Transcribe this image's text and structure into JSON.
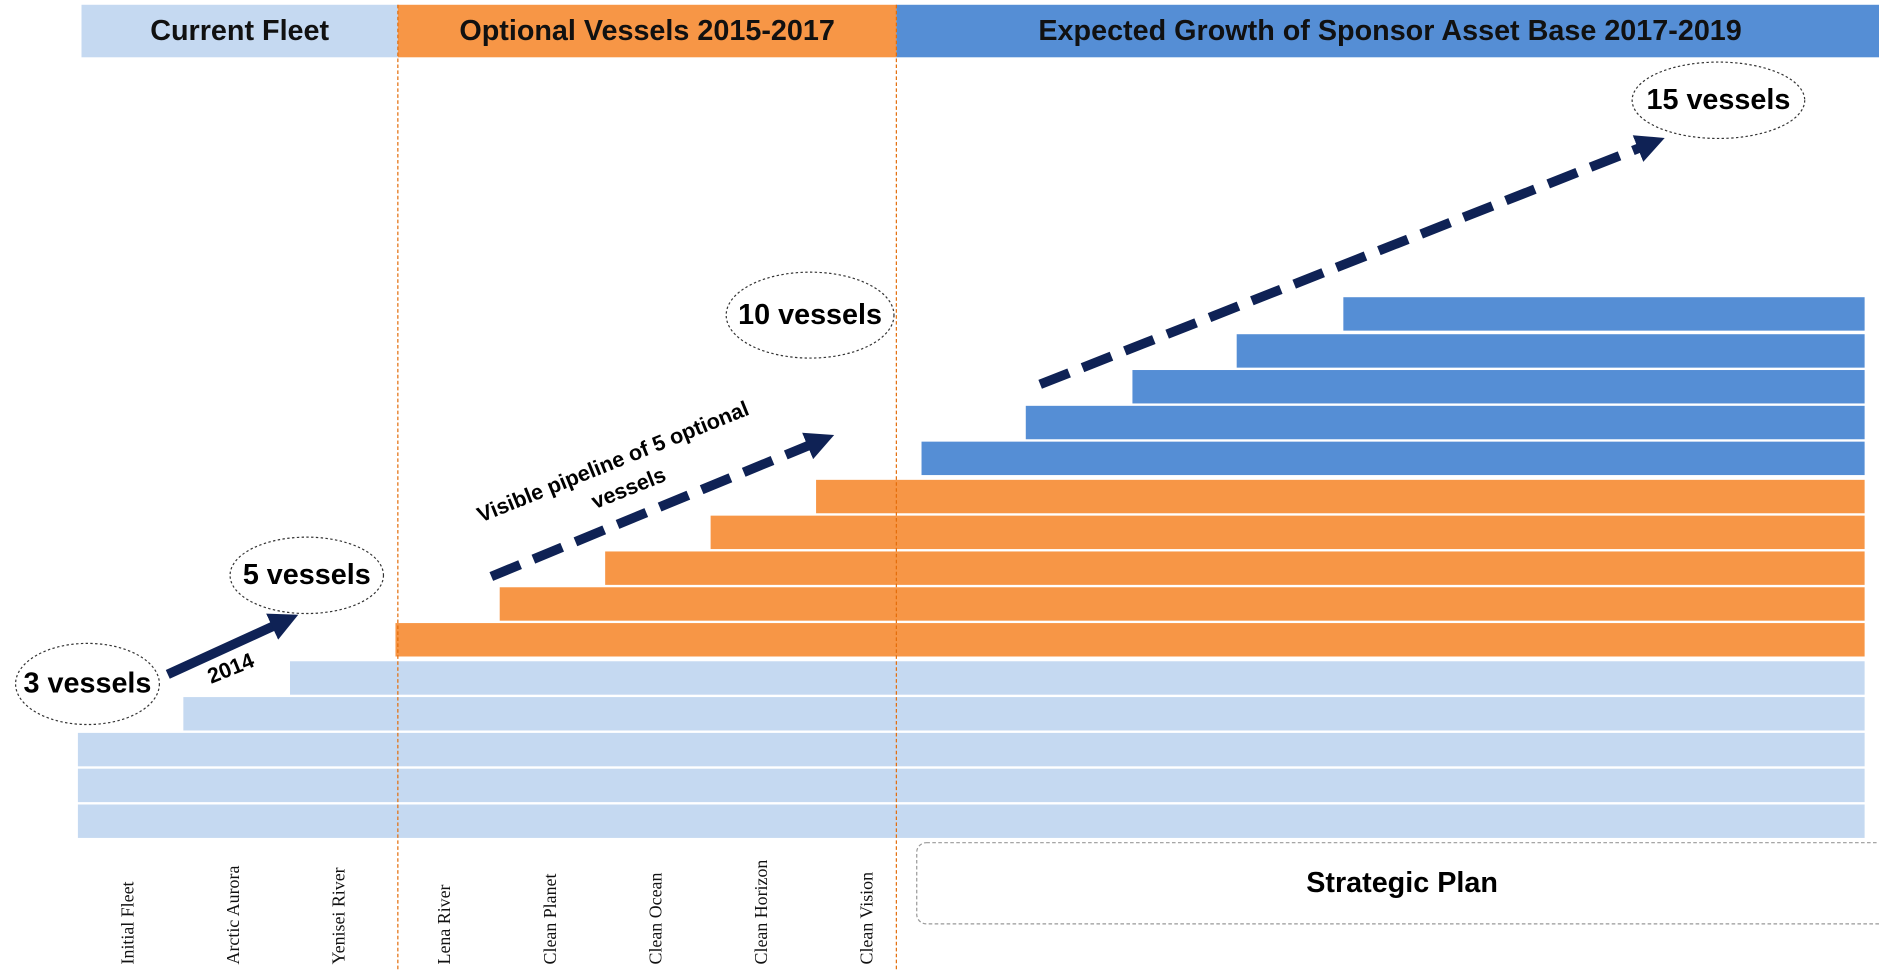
{
  "sections": [
    "Current Fleet",
    "Optional Vessels 2015-2017",
    "Expected Growth of Sponsor Asset Base 2017-2019"
  ],
  "milestones": [
    "3 vessels",
    "5 vessels",
    "10 vessels",
    "15 vessels"
  ],
  "arrow_labels": {
    "first": "2014",
    "pipeline": [
      "Visible pipeline of 5 optional",
      "vessels"
    ]
  },
  "vessels": [
    "Initial Fleet",
    "Arctic Aurora",
    "Yenisei River",
    "Lena River",
    "Clean Planet",
    "Clean Ocean",
    "Clean Horizon",
    "Clean Vision"
  ],
  "plan": "Strategic Plan"
}
